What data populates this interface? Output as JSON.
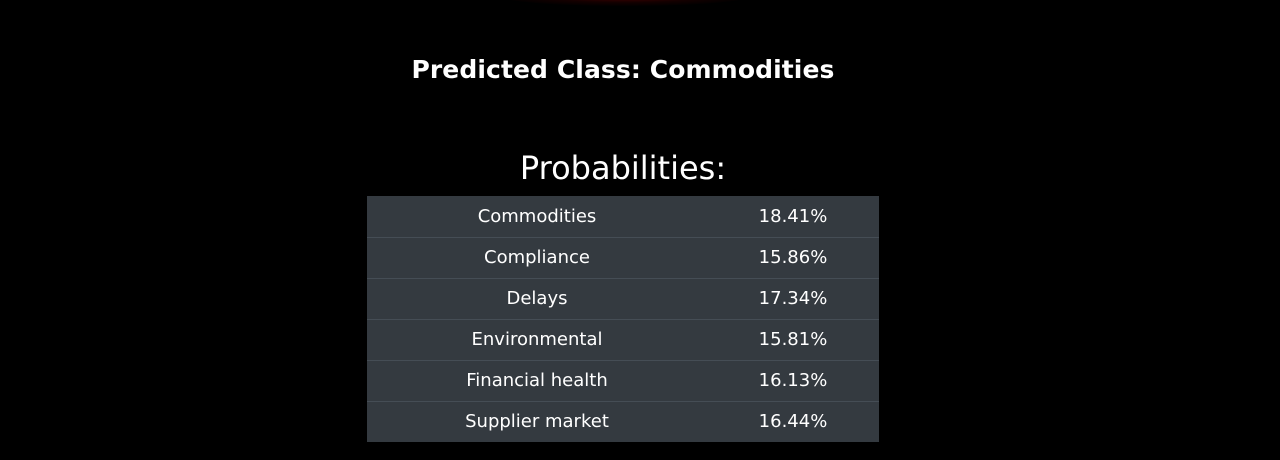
{
  "header": {
    "predicted_label": "Predicted Class: Commodities"
  },
  "probabilities": {
    "title": "Probabilities:",
    "rows": [
      {
        "class": "Commodities",
        "value": "18.41%"
      },
      {
        "class": "Compliance",
        "value": "15.86%"
      },
      {
        "class": "Delays",
        "value": "17.34%"
      },
      {
        "class": "Environmental",
        "value": "15.81%"
      },
      {
        "class": "Financial health",
        "value": "16.13%"
      },
      {
        "class": "Supplier market",
        "value": "16.44%"
      }
    ]
  },
  "colors": {
    "background": "#000000",
    "table_background": "#343a40",
    "table_border": "#454d55",
    "text": "#ffffff"
  }
}
